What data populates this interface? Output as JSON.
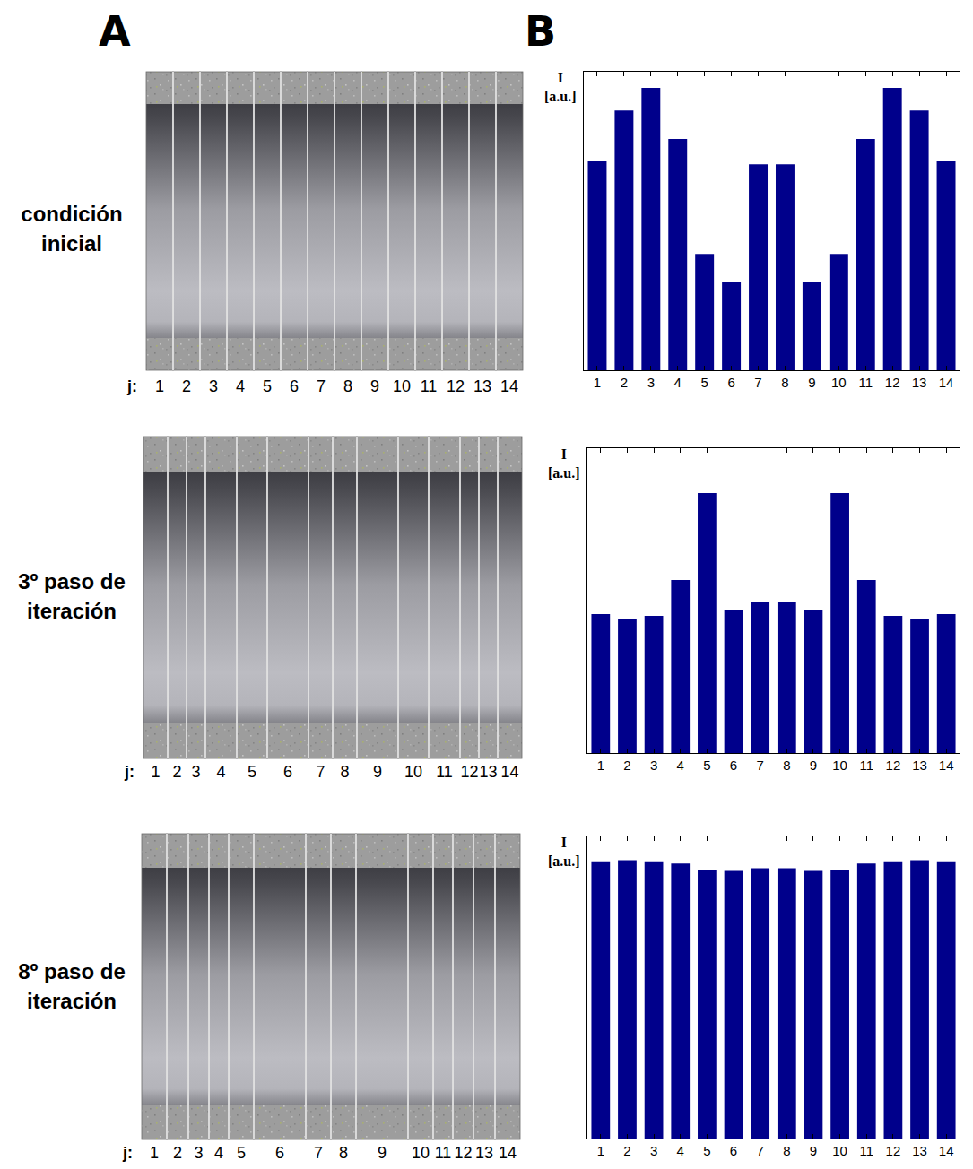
{
  "panels": [
    "A",
    "B"
  ],
  "rows": [
    {
      "label": "condición inicial",
      "strip_label": "j:",
      "strip_numbers": [
        "1",
        "2",
        "3",
        "4",
        "5",
        "6",
        "7",
        "8",
        "9",
        "10",
        "11",
        "12",
        "13",
        "14"
      ],
      "strip_widths": [
        30,
        30,
        30,
        30,
        30,
        30,
        30,
        30,
        30,
        30,
        30,
        30,
        30,
        30
      ]
    },
    {
      "label": "3º paso de iteración",
      "strip_label": "j:",
      "strip_numbers": [
        "1",
        "2",
        "3",
        "4",
        "5",
        "6",
        "7",
        "8",
        "9",
        "10",
        "11",
        "12",
        "13",
        "14"
      ],
      "strip_widths": [
        27,
        21,
        21,
        35,
        34,
        46,
        27,
        27,
        46,
        34,
        35,
        21,
        21,
        27
      ]
    },
    {
      "label": "8º paso de iteración",
      "strip_label": "j:",
      "strip_numbers": [
        "1",
        "2",
        "3",
        "4",
        "5",
        "6",
        "7",
        "8",
        "9",
        "10",
        "11",
        "12",
        "13",
        "14"
      ],
      "strip_widths": [
        28,
        24,
        23,
        22,
        28,
        58,
        28,
        28,
        58,
        28,
        22,
        23,
        24,
        28
      ]
    }
  ],
  "chart_data": [
    {
      "type": "bar",
      "ylabel": "I [a.u.]",
      "categories": [
        "1",
        "2",
        "3",
        "4",
        "5",
        "6",
        "7",
        "8",
        "9",
        "10",
        "11",
        "12",
        "13",
        "14"
      ],
      "values": [
        70,
        87,
        94.6,
        77.5,
        39,
        29.4,
        69,
        69,
        29.4,
        39,
        77.5,
        94.6,
        87,
        70
      ],
      "color": "#00008b",
      "ylim": [
        0,
        100
      ],
      "tick_labels": "x",
      "grid": false
    },
    {
      "type": "bar",
      "ylabel": "I [a.u.]",
      "categories": [
        "1",
        "2",
        "3",
        "4",
        "5",
        "6",
        "7",
        "8",
        "9",
        "10",
        "11",
        "12",
        "13",
        "14"
      ],
      "values": [
        45.6,
        43.8,
        45,
        56.8,
        85.3,
        46.8,
        49.7,
        49.7,
        46.8,
        85.3,
        56.8,
        45,
        43.8,
        45.6
      ],
      "color": "#00008b",
      "ylim": [
        0,
        100
      ],
      "tick_labels": "x",
      "grid": false
    },
    {
      "type": "bar",
      "ylabel": "I [a.u.]",
      "categories": [
        "1",
        "2",
        "3",
        "4",
        "5",
        "6",
        "7",
        "8",
        "9",
        "10",
        "11",
        "12",
        "13",
        "14"
      ],
      "values": [
        91.8,
        92.1,
        91.8,
        91,
        88.9,
        88.6,
        89.5,
        89.5,
        88.6,
        88.9,
        91,
        91.8,
        92.1,
        91.8
      ],
      "color": "#00008b",
      "ylim": [
        0,
        100
      ],
      "tick_labels": "x",
      "grid": false
    }
  ]
}
